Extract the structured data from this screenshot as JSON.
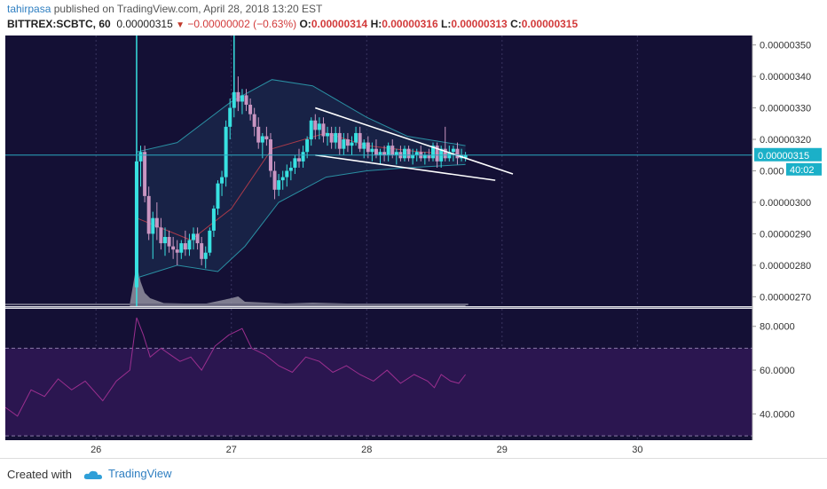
{
  "header": {
    "author": "tahirpasa",
    "published_text": "published on TradingView.com, April 28, 2018 13:20 EST",
    "symbol": "BITTREX:SCBTC, 60",
    "last": "0.00000315",
    "change": "−0.00000002 (−0.63%)",
    "o_label": "O:",
    "o_value": "0.00000314",
    "h_label": "H:",
    "h_value": "0.00000316",
    "l_label": "L:",
    "l_value": "0.00000313",
    "c_label": "C:",
    "c_value": "0.00000315"
  },
  "footer": {
    "created_with": "Created with",
    "brand": "TradingView"
  },
  "colors": {
    "background": "#141035",
    "up": "#38e1e1",
    "down": "#c995c1",
    "band": "#2a8fa3",
    "rsi": "#9b2f8f",
    "rsi_fill": "#2b1650"
  },
  "chart_data": [
    {
      "type": "candlestick",
      "title": "",
      "y_ticks": [
        "0.00000350",
        "0.00000340",
        "0.00000330",
        "0.00000320",
        "0.00000315",
        "0.00000310",
        "0.00000300",
        "0.00000290",
        "0.00000280",
        "0.00000270"
      ],
      "y_range": [
        2.67e-06,
        3.53e-06
      ],
      "x_ticks": [
        "26",
        "27",
        "28",
        "29",
        "30"
      ],
      "x_range": [
        25.33,
        30.85
      ],
      "price_label": "0.00000315",
      "countdown": "40:02",
      "last_price": 3.15e-06,
      "candles": [
        [
          26.3,
          2.73,
          3.16,
          2.7,
          3.13
        ],
        [
          26.33,
          3.13,
          3.18,
          3.05,
          3.16
        ],
        [
          26.36,
          3.16,
          3.18,
          3.0,
          3.02
        ],
        [
          26.39,
          3.02,
          3.05,
          2.88,
          2.9
        ],
        [
          26.42,
          2.9,
          2.97,
          2.82,
          2.95
        ],
        [
          26.45,
          2.95,
          3.0,
          2.88,
          2.92
        ],
        [
          26.48,
          2.92,
          2.95,
          2.85,
          2.87
        ],
        [
          26.51,
          2.87,
          2.92,
          2.83,
          2.89
        ],
        [
          26.54,
          2.89,
          2.91,
          2.84,
          2.86
        ],
        [
          26.57,
          2.86,
          2.89,
          2.82,
          2.85
        ],
        [
          26.6,
          2.85,
          2.88,
          2.8,
          2.84
        ],
        [
          26.63,
          2.84,
          2.88,
          2.82,
          2.87
        ],
        [
          26.66,
          2.87,
          2.91,
          2.83,
          2.85
        ],
        [
          26.69,
          2.85,
          2.9,
          2.83,
          2.88
        ],
        [
          26.72,
          2.88,
          2.92,
          2.85,
          2.9
        ],
        [
          26.75,
          2.9,
          2.92,
          2.85,
          2.87
        ],
        [
          26.78,
          2.87,
          2.89,
          2.8,
          2.82
        ],
        [
          26.81,
          2.82,
          2.86,
          2.79,
          2.84
        ],
        [
          26.84,
          2.84,
          2.92,
          2.83,
          2.91
        ],
        [
          26.87,
          2.91,
          2.99,
          2.89,
          2.98
        ],
        [
          26.9,
          2.98,
          3.07,
          2.96,
          3.06
        ],
        [
          26.93,
          3.06,
          3.1,
          3.02,
          3.08
        ],
        [
          26.96,
          3.08,
          3.26,
          3.05,
          3.24
        ],
        [
          26.99,
          3.24,
          3.33,
          3.2,
          3.3
        ],
        [
          27.02,
          3.3,
          3.38,
          3.27,
          3.35
        ],
        [
          27.05,
          3.35,
          3.4,
          3.29,
          3.32
        ],
        [
          27.08,
          3.32,
          3.36,
          3.28,
          3.34
        ],
        [
          27.11,
          3.34,
          3.36,
          3.29,
          3.31
        ],
        [
          27.14,
          3.31,
          3.33,
          3.26,
          3.28
        ],
        [
          27.17,
          3.28,
          3.3,
          3.21,
          3.24
        ],
        [
          27.2,
          3.24,
          3.27,
          3.17,
          3.19
        ],
        [
          27.23,
          3.19,
          3.22,
          3.14,
          3.21
        ],
        [
          27.26,
          3.21,
          3.24,
          3.18,
          3.2
        ],
        [
          27.29,
          3.2,
          3.22,
          3.08,
          3.1
        ],
        [
          27.32,
          3.1,
          3.13,
          3.01,
          3.04
        ],
        [
          27.35,
          3.04,
          3.09,
          3.02,
          3.07
        ],
        [
          27.38,
          3.07,
          3.1,
          3.04,
          3.08
        ],
        [
          27.41,
          3.08,
          3.12,
          3.05,
          3.1
        ],
        [
          27.44,
          3.1,
          3.13,
          3.07,
          3.11
        ],
        [
          27.47,
          3.11,
          3.15,
          3.09,
          3.14
        ],
        [
          27.5,
          3.14,
          3.17,
          3.11,
          3.13
        ],
        [
          27.53,
          3.13,
          3.18,
          3.11,
          3.16
        ],
        [
          27.56,
          3.16,
          3.21,
          3.14,
          3.2
        ],
        [
          27.59,
          3.2,
          3.27,
          3.18,
          3.26
        ],
        [
          27.62,
          3.26,
          3.28,
          3.2,
          3.23
        ],
        [
          27.65,
          3.23,
          3.27,
          3.2,
          3.25
        ],
        [
          27.68,
          3.25,
          3.27,
          3.19,
          3.21
        ],
        [
          27.71,
          3.21,
          3.24,
          3.18,
          3.22
        ],
        [
          27.74,
          3.22,
          3.24,
          3.17,
          3.19
        ],
        [
          27.77,
          3.19,
          3.24,
          3.17,
          3.22
        ],
        [
          27.8,
          3.22,
          3.24,
          3.15,
          3.17
        ],
        [
          27.83,
          3.17,
          3.22,
          3.15,
          3.2
        ],
        [
          27.86,
          3.2,
          3.22,
          3.16,
          3.18
        ],
        [
          27.89,
          3.18,
          3.21,
          3.15,
          3.19
        ],
        [
          27.92,
          3.19,
          3.24,
          3.18,
          3.22
        ],
        [
          27.95,
          3.22,
          3.24,
          3.16,
          3.17
        ],
        [
          27.98,
          3.17,
          3.2,
          3.14,
          3.19
        ],
        [
          28.01,
          3.19,
          3.21,
          3.14,
          3.16
        ],
        [
          28.04,
          3.16,
          3.19,
          3.13,
          3.17
        ],
        [
          28.07,
          3.17,
          3.2,
          3.14,
          3.15
        ],
        [
          28.1,
          3.15,
          3.17,
          3.12,
          3.16
        ],
        [
          28.13,
          3.16,
          3.18,
          3.13,
          3.15
        ],
        [
          28.16,
          3.15,
          3.19,
          3.13,
          3.18
        ],
        [
          28.19,
          3.18,
          3.2,
          3.14,
          3.15
        ],
        [
          28.22,
          3.15,
          3.17,
          3.12,
          3.16
        ],
        [
          28.25,
          3.16,
          3.18,
          3.13,
          3.14
        ],
        [
          28.28,
          3.14,
          3.18,
          3.13,
          3.17
        ],
        [
          28.31,
          3.17,
          3.18,
          3.13,
          3.14
        ],
        [
          28.34,
          3.14,
          3.17,
          3.12,
          3.15
        ],
        [
          28.37,
          3.15,
          3.17,
          3.13,
          3.16
        ],
        [
          28.4,
          3.16,
          3.18,
          3.13,
          3.14
        ],
        [
          28.43,
          3.14,
          3.16,
          3.12,
          3.15
        ],
        [
          28.46,
          3.15,
          3.17,
          3.13,
          3.14
        ],
        [
          28.49,
          3.14,
          3.19,
          3.13,
          3.18
        ],
        [
          28.52,
          3.18,
          3.19,
          3.11,
          3.13
        ],
        [
          28.55,
          3.13,
          3.18,
          3.11,
          3.17
        ],
        [
          28.58,
          3.17,
          3.24,
          3.13,
          3.14
        ],
        [
          28.61,
          3.14,
          3.18,
          3.13,
          3.16
        ],
        [
          28.64,
          3.16,
          3.18,
          3.13,
          3.17
        ],
        [
          28.67,
          3.17,
          3.19,
          3.12,
          3.14
        ],
        [
          28.7,
          3.14,
          3.17,
          3.13,
          3.15
        ],
        [
          28.73,
          3.14,
          3.16,
          3.13,
          3.15
        ]
      ],
      "bollinger_upper": [
        [
          26.3,
          3.16
        ],
        [
          26.6,
          3.19
        ],
        [
          27.0,
          3.32
        ],
        [
          27.3,
          3.39
        ],
        [
          27.6,
          3.37
        ],
        [
          28.0,
          3.27
        ],
        [
          28.3,
          3.21
        ],
        [
          28.73,
          3.18
        ]
      ],
      "bollinger_lower": [
        [
          26.3,
          2.76
        ],
        [
          26.6,
          2.8
        ],
        [
          26.9,
          2.78
        ],
        [
          27.1,
          2.86
        ],
        [
          27.35,
          3.0
        ],
        [
          27.7,
          3.08
        ],
        [
          28.0,
          3.1
        ],
        [
          28.3,
          3.11
        ],
        [
          28.73,
          3.12
        ]
      ],
      "bollinger_mid": [
        [
          26.3,
          2.95
        ],
        [
          26.7,
          2.88
        ],
        [
          27.0,
          2.98
        ],
        [
          27.3,
          3.17
        ],
        [
          27.7,
          3.22
        ],
        [
          28.0,
          3.18
        ],
        [
          28.4,
          3.16
        ],
        [
          28.73,
          3.15
        ]
      ],
      "wedge_upper": [
        [
          27.62,
          3.3
        ],
        [
          29.08,
          3.09
        ]
      ],
      "wedge_lower": [
        [
          27.62,
          3.15
        ],
        [
          28.95,
          3.07
        ]
      ],
      "rsi": {
        "y_ticks": [
          "80.0000",
          "60.0000",
          "40.0000"
        ],
        "y_range": [
          28,
          88
        ],
        "bands": [
          70,
          30
        ],
        "values": [
          [
            25.33,
            43
          ],
          [
            25.42,
            39
          ],
          [
            25.52,
            51
          ],
          [
            25.62,
            48
          ],
          [
            25.72,
            56
          ],
          [
            25.82,
            51
          ],
          [
            25.92,
            55
          ],
          [
            26.05,
            46
          ],
          [
            26.15,
            55
          ],
          [
            26.25,
            60
          ],
          [
            26.3,
            84
          ],
          [
            26.35,
            76
          ],
          [
            26.4,
            66
          ],
          [
            26.48,
            70
          ],
          [
            26.55,
            67
          ],
          [
            26.62,
            64
          ],
          [
            26.7,
            66
          ],
          [
            26.78,
            60
          ],
          [
            26.88,
            71
          ],
          [
            26.98,
            76
          ],
          [
            27.08,
            79
          ],
          [
            27.15,
            70
          ],
          [
            27.25,
            67
          ],
          [
            27.35,
            62
          ],
          [
            27.45,
            59
          ],
          [
            27.55,
            66
          ],
          [
            27.65,
            64
          ],
          [
            27.75,
            59
          ],
          [
            27.85,
            62
          ],
          [
            27.95,
            58
          ],
          [
            28.05,
            55
          ],
          [
            28.15,
            60
          ],
          [
            28.25,
            54
          ],
          [
            28.35,
            58
          ],
          [
            28.45,
            55
          ],
          [
            28.5,
            52
          ],
          [
            28.55,
            58
          ],
          [
            28.62,
            55
          ],
          [
            28.68,
            54
          ],
          [
            28.73,
            58
          ]
        ]
      },
      "volume": [
        [
          26.25,
          0.05
        ],
        [
          26.3,
          0.95
        ],
        [
          26.33,
          0.55
        ],
        [
          26.36,
          0.3
        ],
        [
          26.4,
          0.18
        ],
        [
          26.5,
          0.07
        ],
        [
          26.8,
          0.05
        ],
        [
          27.0,
          0.18
        ],
        [
          27.05,
          0.22
        ],
        [
          27.1,
          0.1
        ],
        [
          27.4,
          0.06
        ],
        [
          27.6,
          0.08
        ],
        [
          28.0,
          0.05
        ],
        [
          28.6,
          0.06
        ],
        [
          28.73,
          0.03
        ]
      ]
    }
  ]
}
